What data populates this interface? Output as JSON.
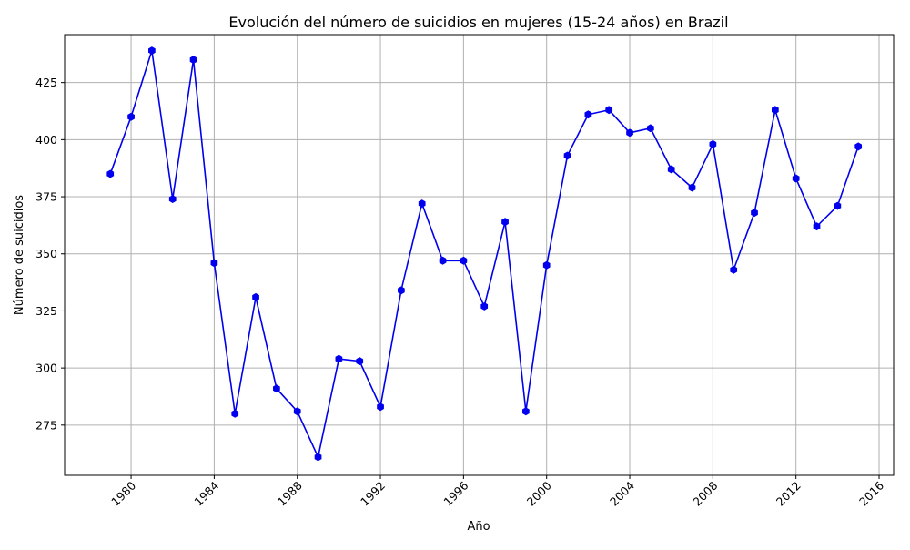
{
  "chart_data": {
    "type": "line",
    "title": "Evolución del número de suicidios en mujeres (15-24 años) en Brazil",
    "xlabel": "Año",
    "ylabel": "Número de suicidios",
    "x_ticks": [
      1980,
      1984,
      1988,
      1992,
      1996,
      2000,
      2004,
      2008,
      2012,
      2016
    ],
    "y_ticks": [
      275,
      300,
      325,
      350,
      375,
      400,
      425
    ],
    "xlim": [
      1976.8,
      2016.7
    ],
    "ylim": [
      253,
      446
    ],
    "grid": true,
    "color": "#0000ee",
    "series": [
      {
        "x": [
          1979,
          1980,
          1981,
          1982,
          1983,
          1984,
          1985,
          1986,
          1987,
          1988,
          1989,
          1990,
          1991,
          1992,
          1993,
          1994,
          1995,
          1996,
          1997,
          1998,
          1999,
          2000,
          2001,
          2002,
          2003,
          2004,
          2005,
          2006,
          2007,
          2008,
          2009,
          2010,
          2011,
          2012,
          2013,
          2014,
          2015
        ],
        "values": [
          385,
          410,
          439,
          374,
          435,
          346,
          280,
          331,
          291,
          281,
          261,
          304,
          303,
          283,
          334,
          372,
          347,
          347,
          327,
          364,
          281,
          345,
          393,
          411,
          413,
          403,
          405,
          387,
          379,
          398,
          343,
          368,
          413,
          383,
          362,
          371,
          397
        ]
      }
    ]
  }
}
